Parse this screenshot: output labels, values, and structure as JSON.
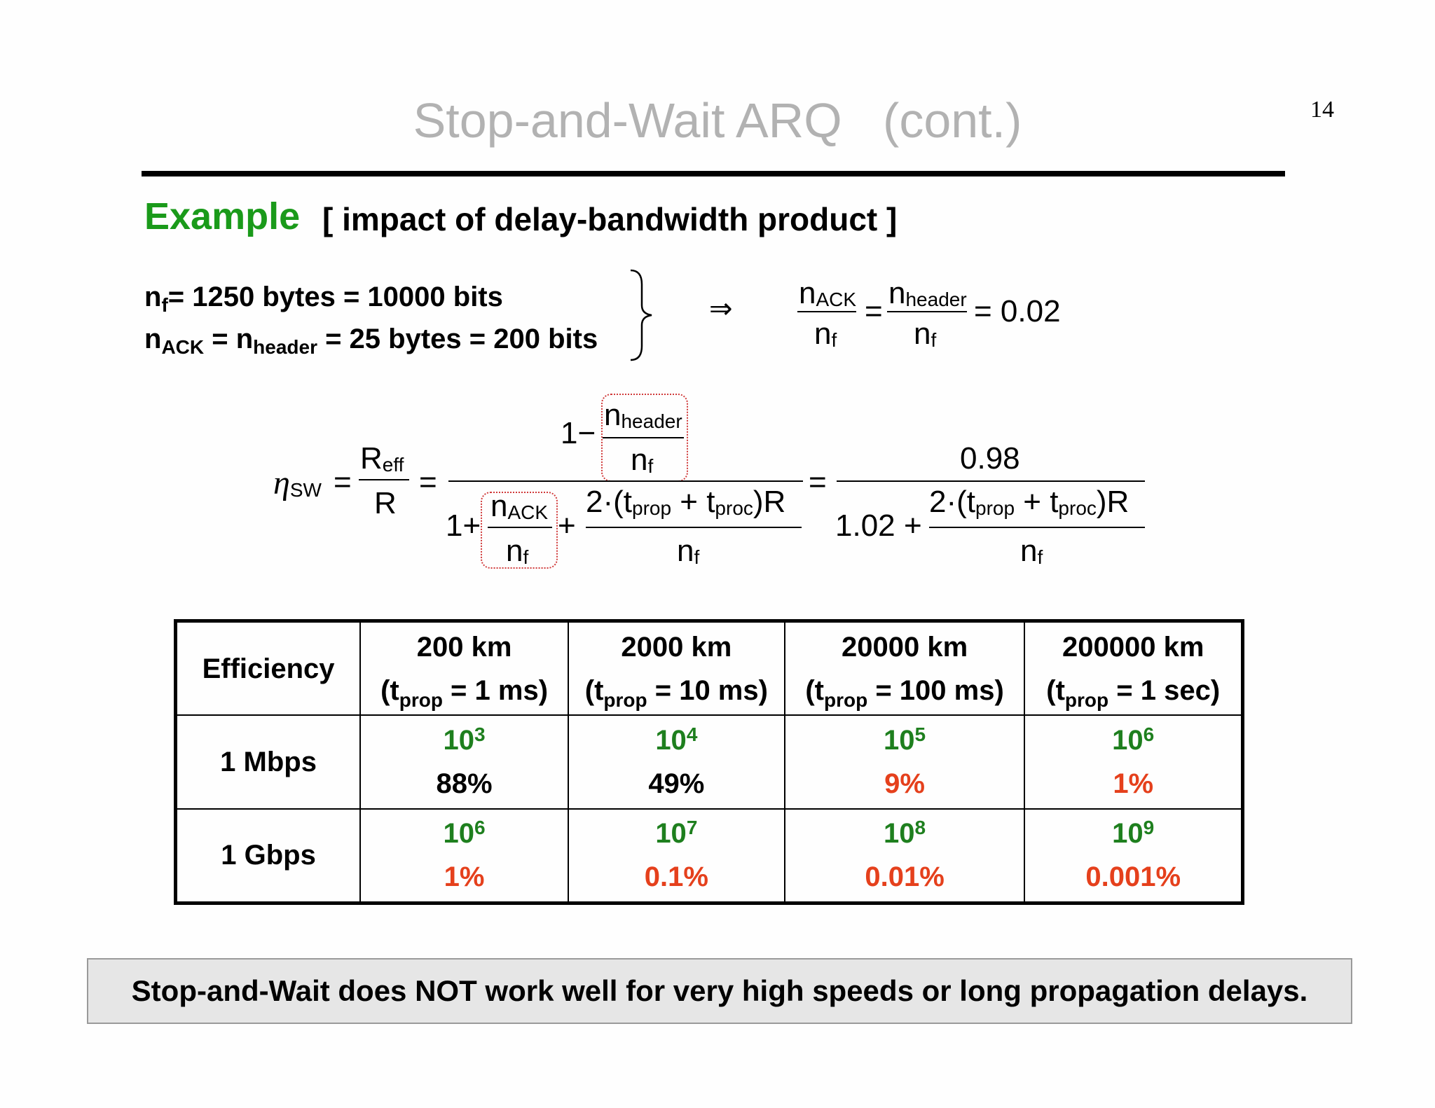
{
  "slide": {
    "title": "Stop-and-Wait ARQ   (cont.)",
    "page_number": "14",
    "example_label": "Example",
    "example_subtitle": "[ impact of delay-bandwidth product ]"
  },
  "definitions": {
    "line1": {
      "var": "n",
      "sub": "f",
      "rest": "= 1250 bytes = 10000 bits"
    },
    "line2": {
      "var1": "n",
      "sub1": "ACK",
      "eq": " = n",
      "sub2": "header",
      "rest": " = 25 bytes = 200 bits"
    },
    "implies_symbol": "⇒",
    "ratio": {
      "n": "n",
      "ack": "ACK",
      "header": "header",
      "f": "f",
      "eq": "=",
      "value": "= 0.02"
    }
  },
  "formula": {
    "eta": "η",
    "eta_sub": "SW",
    "eq": "=",
    "r": "R",
    "eff": "eff",
    "one_minus": "1−",
    "one_plus": "1+",
    "plus": "+",
    "n": "n",
    "header": "header",
    "ack": "ACK",
    "f": "f",
    "two": "2·(t",
    "prop": "prop",
    "plus_t": " + t",
    "proc": "proc",
    "close_r": ")R",
    "numerator_value": "0.98",
    "denominator_const": "1.02"
  },
  "table": {
    "corner": "Efficiency",
    "columns": [
      {
        "distance": "200 km",
        "t": "(t",
        "sub": "prop",
        "delay": " = 1 ms)"
      },
      {
        "distance": "2000 km",
        "t": "(t",
        "sub": "prop",
        "delay": " = 10 ms)"
      },
      {
        "distance": "20000 km",
        "t": "(t",
        "sub": "prop",
        "delay": " = 100 ms)"
      },
      {
        "distance": "200000 km",
        "t": "(t",
        "sub": "prop",
        "delay": " = 1 sec)"
      }
    ],
    "rows": [
      {
        "rate": "1 Mbps",
        "cells": [
          {
            "base": "10",
            "exp": "3",
            "eff": "88%",
            "low": false
          },
          {
            "base": "10",
            "exp": "4",
            "eff": "49%",
            "low": false
          },
          {
            "base": "10",
            "exp": "5",
            "eff": "9%",
            "low": true
          },
          {
            "base": "10",
            "exp": "6",
            "eff": "1%",
            "low": true
          }
        ]
      },
      {
        "rate": "1 Gbps",
        "cells": [
          {
            "base": "10",
            "exp": "6",
            "eff": "1%",
            "low": true
          },
          {
            "base": "10",
            "exp": "7",
            "eff": "0.1%",
            "low": true
          },
          {
            "base": "10",
            "exp": "8",
            "eff": "0.01%",
            "low": true
          },
          {
            "base": "10",
            "exp": "9",
            "eff": "0.001%",
            "low": true
          }
        ]
      }
    ]
  },
  "conclusion": "Stop-and-Wait does NOT work well for very high speeds or long propagation delays.",
  "colors": {
    "title": "#b2b2b2",
    "example": "#1a9a1a",
    "exponent": "#1e7f1e",
    "low_efficiency": "#e5401c",
    "highlight_box": "#d03a3a",
    "conclusion_bg": "#e6e6e6"
  }
}
